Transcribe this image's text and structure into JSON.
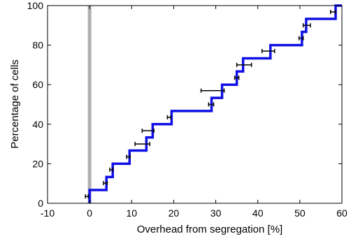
{
  "chart_data": {
    "type": "line",
    "title": "",
    "xlabel": "Overhead from segregation [%]",
    "ylabel": "Percentage of cells",
    "xlim": [
      -10,
      60
    ],
    "ylim": [
      0,
      100
    ],
    "xticks": [
      "-10",
      "0",
      "10",
      "20",
      "30",
      "40",
      "50",
      "60"
    ],
    "yticks": [
      "0",
      "20",
      "40",
      "60",
      "80",
      "100"
    ],
    "grid": false,
    "legend": "none",
    "reference_line": {
      "x": 0,
      "color": "#b0b0b0"
    },
    "series": [
      {
        "style": "step",
        "color": "#1010e6",
        "x": [
          0,
          4,
          5.5,
          9.5,
          13.5,
          15,
          19.5,
          29,
          31.5,
          35,
          36.5,
          43,
          50.5,
          51.5,
          58.5,
          60
        ],
        "y": [
          6.7,
          13.3,
          20,
          26.7,
          33.3,
          40,
          46.7,
          53.3,
          60,
          66.7,
          73.3,
          80,
          86.7,
          93.3,
          100,
          100
        ]
      }
    ],
    "error_bars": {
      "color": "#000000",
      "items": [
        {
          "y": 3.5,
          "x_low": -1.0,
          "x_high": -0.3
        },
        {
          "y": 10.2,
          "x_low": 3.3,
          "x_high": 4.2
        },
        {
          "y": 17.0,
          "x_low": 4.8,
          "x_high": 5.5
        },
        {
          "y": 23.5,
          "x_low": 8.8,
          "x_high": 9.6
        },
        {
          "y": 30.0,
          "x_low": 10.8,
          "x_high": 14.3
        },
        {
          "y": 36.7,
          "x_low": 12.5,
          "x_high": 15.3
        },
        {
          "y": 43.5,
          "x_low": 18.5,
          "x_high": 19.3
        },
        {
          "y": 50.0,
          "x_low": 28.3,
          "x_high": 29.5
        },
        {
          "y": 57.0,
          "x_low": 26.5,
          "x_high": 32.0
        },
        {
          "y": 63.5,
          "x_low": 34.5,
          "x_high": 35.5
        },
        {
          "y": 70.0,
          "x_low": 35.0,
          "x_high": 38.5
        },
        {
          "y": 77.0,
          "x_low": 41.0,
          "x_high": 44.0
        },
        {
          "y": 83.5,
          "x_low": 49.8,
          "x_high": 50.8
        },
        {
          "y": 90.0,
          "x_low": 50.8,
          "x_high": 52.5
        },
        {
          "y": 96.8,
          "x_low": 57.3,
          "x_high": 58.5
        }
      ]
    }
  }
}
